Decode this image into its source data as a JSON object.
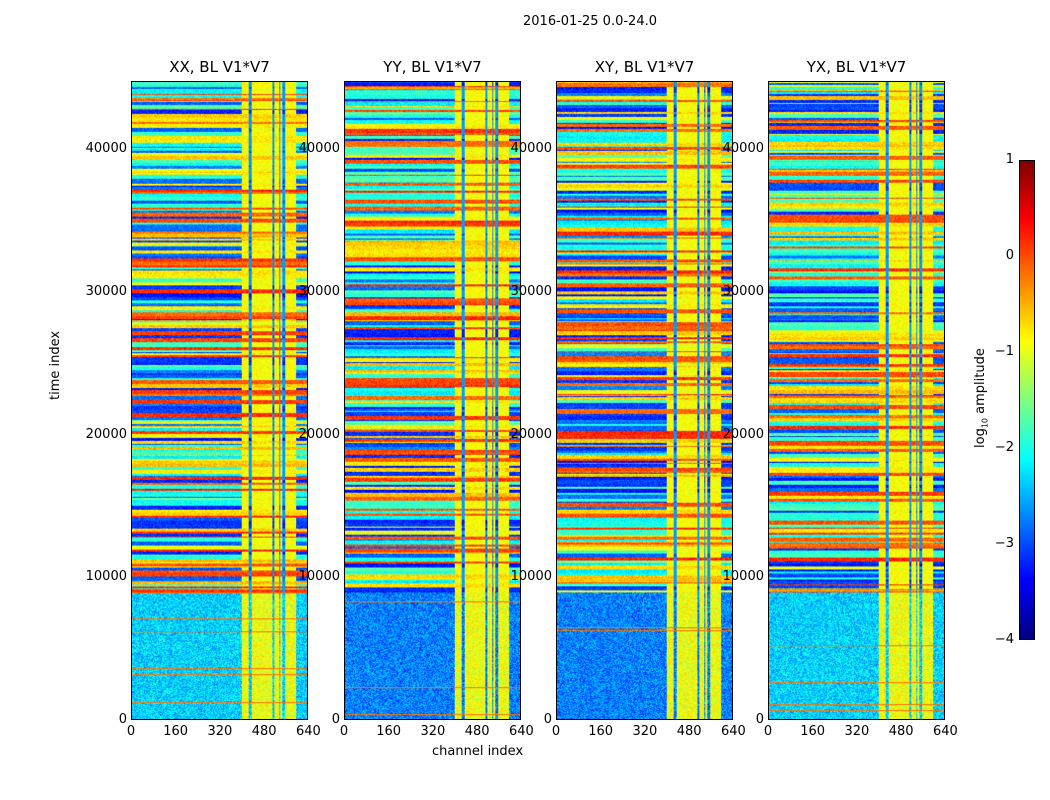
{
  "figure_title": "2016-01-25 0.0-24.0",
  "chart_data": [
    {
      "type": "heatmap",
      "title": "XX, BL V1*V7",
      "xlabel": "",
      "ylabel": "time index",
      "xlim": [
        0,
        640
      ],
      "ylim": [
        0,
        44800
      ],
      "xticks": [
        "0",
        "160",
        "320",
        "480",
        "640"
      ],
      "yticks": [
        "0",
        "10000",
        "20000",
        "30000",
        "40000"
      ],
      "seed": 11
    },
    {
      "type": "heatmap",
      "title": "YY, BL V1*V7",
      "xlabel": "channel index",
      "ylabel": "",
      "xlim": [
        0,
        640
      ],
      "ylim": [
        0,
        44800
      ],
      "xticks": [
        "0",
        "160",
        "320",
        "480",
        "640"
      ],
      "yticks": [
        "0",
        "10000",
        "20000",
        "30000",
        "40000"
      ],
      "seed": 23
    },
    {
      "type": "heatmap",
      "title": "XY, BL V1*V7",
      "xlabel": "",
      "ylabel": "",
      "xlim": [
        0,
        640
      ],
      "ylim": [
        0,
        44800
      ],
      "xticks": [
        "0",
        "160",
        "320",
        "480",
        "640"
      ],
      "yticks": [
        "0",
        "10000",
        "20000",
        "30000",
        "40000"
      ],
      "seed": 37
    },
    {
      "type": "heatmap",
      "title": "YX, BL V1*V7",
      "xlabel": "",
      "ylabel": "",
      "xlim": [
        0,
        640
      ],
      "ylim": [
        0,
        44800
      ],
      "xticks": [
        "0",
        "160",
        "320",
        "480",
        "640"
      ],
      "yticks": [
        "0",
        "10000",
        "20000",
        "30000",
        "40000"
      ],
      "seed": 53
    }
  ],
  "colorbar": {
    "label_main": "log",
    "label_sub": "10",
    "label_rest": " amplitude",
    "colormap": "jet",
    "range": [
      -4,
      1
    ],
    "ticks": [
      "1",
      "0",
      "−1",
      "−2",
      "−3",
      "−4"
    ]
  }
}
